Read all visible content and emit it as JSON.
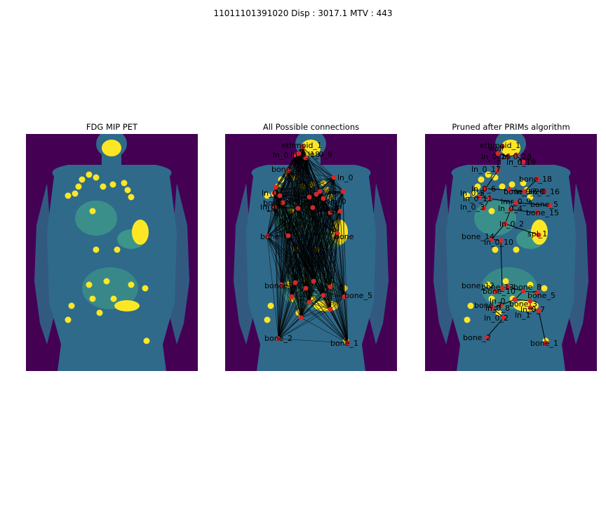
{
  "figure": {
    "suptitle": "11011101391020   Disp : 3017.1  MTV : 443"
  },
  "panels": [
    {
      "title": "FDG MIP PET"
    },
    {
      "title": "All Possible connections"
    },
    {
      "title": "Pruned after PRIMs algorithm"
    }
  ],
  "colors": {
    "background": "#440154",
    "body": "#2f6a8a",
    "uptake_mid": "#3fa08a",
    "uptake_high": "#fde725",
    "node": "#d62728",
    "edge": "#000000"
  },
  "graph": {
    "panel2_labels": [
      "ethmoid_1",
      "ln_0",
      "ln_0_18",
      "ln_0_9",
      "ln_0",
      "bone_18",
      "ln_0",
      "16",
      "ln_0",
      "bone",
      "19",
      "ln_0",
      "ln_0",
      "15",
      "bone",
      "bone",
      "0",
      "bone_5",
      "bone",
      "bone_2",
      "bone_1"
    ],
    "panel3_labels": [
      "ethmoid_1",
      "wall",
      "ln_0_26",
      "ln_0_28",
      "ln_0_19",
      "ln_0_17",
      "bone_18",
      "ln_0_6",
      "bone_17",
      "ln_0_20",
      "ln_0_16",
      "ln_0_5",
      "ln_0_11",
      "lmr_0_9",
      "bone_5",
      "ln_0_3",
      "ln_0_4",
      "bone_15",
      "ln_0_2",
      "spl_1",
      "bone_14",
      "ln_0_10",
      "bone_12",
      "bone_13",
      "bone_10",
      "bone_8",
      "bone_5",
      "ln_0",
      "bone_3",
      "bone_7",
      "ln_0_8",
      "ln_0_7",
      "ln_1",
      "ln_0_2",
      "bone_2",
      "bone_1"
    ]
  }
}
